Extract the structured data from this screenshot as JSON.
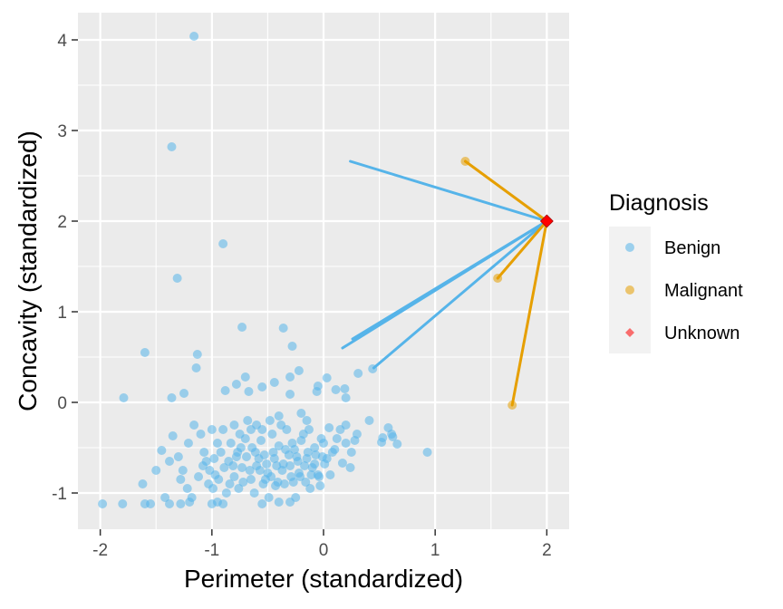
{
  "chart_data": {
    "type": "scatter",
    "xlabel": "Perimeter (standardized)",
    "ylabel": "Concavity (standardized)",
    "xlim": [
      -2.2,
      2.2
    ],
    "ylim": [
      -1.4,
      4.3
    ],
    "x_ticks": [
      -2,
      -1,
      0,
      1,
      2
    ],
    "y_ticks": [
      -1,
      0,
      1,
      2,
      3,
      4
    ],
    "x_tick_labels": [
      "-2",
      "-1",
      "0",
      "1",
      "2"
    ],
    "y_tick_labels": [
      "-1",
      "0",
      "1",
      "2",
      "3",
      "4"
    ],
    "grid": true,
    "legend": {
      "title": "Diagnosis",
      "position": "right",
      "entries": [
        {
          "label": "Benign",
          "color": "#56B4E9",
          "shape": "circle"
        },
        {
          "label": "Malignant",
          "color": "#E69F00",
          "shape": "circle"
        },
        {
          "label": "Unknown",
          "color": "#FF0000",
          "shape": "diamond"
        }
      ]
    },
    "series": [
      {
        "name": "Benign",
        "color": "#56B4E9",
        "points": [
          [
            -1.16,
            4.04
          ],
          [
            -1.36,
            2.82
          ],
          [
            -0.9,
            1.75
          ],
          [
            -1.31,
            1.37
          ],
          [
            -1.6,
            0.55
          ],
          [
            -0.73,
            0.83
          ],
          [
            -0.36,
            0.82
          ],
          [
            -1.13,
            0.53
          ],
          [
            -0.28,
            0.62
          ],
          [
            -1.14,
            0.38
          ],
          [
            -1.79,
            0.05
          ],
          [
            -1.36,
            0.05
          ],
          [
            -1.25,
            0.1
          ],
          [
            -0.7,
            0.28
          ],
          [
            -0.55,
            0.17
          ],
          [
            -0.3,
            0.28
          ],
          [
            -0.22,
            0.35
          ],
          [
            -0.06,
            0.12
          ],
          [
            0.03,
            0.27
          ],
          [
            0.19,
            0.15
          ],
          [
            0.31,
            0.32
          ],
          [
            0.44,
            0.37
          ],
          [
            0.2,
            0.05
          ],
          [
            -0.05,
            0.18
          ],
          [
            -0.88,
            0.13
          ],
          [
            -0.78,
            0.2
          ],
          [
            -0.44,
            0.22
          ],
          [
            -0.3,
            0.09
          ],
          [
            0.11,
            0.14
          ],
          [
            -0.67,
            0.12
          ],
          [
            0.93,
            -0.55
          ],
          [
            0.61,
            -0.35
          ],
          [
            0.66,
            -0.46
          ],
          [
            0.53,
            -0.39
          ],
          [
            0.41,
            -0.2
          ],
          [
            0.3,
            -0.35
          ],
          [
            0.2,
            -0.25
          ],
          [
            0.1,
            -0.52
          ],
          [
            0.17,
            -0.67
          ],
          [
            0.24,
            -0.72
          ],
          [
            0.58,
            -0.28
          ],
          [
            0.62,
            -0.38
          ],
          [
            0.52,
            -0.44
          ],
          [
            -1.98,
            -1.12
          ],
          [
            -1.8,
            -1.12
          ],
          [
            -1.55,
            -1.12
          ],
          [
            -1.38,
            -1.12
          ],
          [
            -1.28,
            -1.12
          ],
          [
            -1.62,
            -0.9
          ],
          [
            -1.5,
            -0.75
          ],
          [
            -1.45,
            -0.53
          ],
          [
            -1.35,
            -0.37
          ],
          [
            -1.38,
            -0.65
          ],
          [
            -1.28,
            -0.85
          ],
          [
            -1.21,
            -0.45
          ],
          [
            -1.16,
            -0.25
          ],
          [
            -1.07,
            -0.55
          ],
          [
            -1.02,
            -0.75
          ],
          [
            -0.99,
            -0.95
          ],
          [
            -0.95,
            -1.1
          ],
          [
            -0.9,
            -0.3
          ],
          [
            -0.85,
            -0.65
          ],
          [
            -0.8,
            -0.82
          ],
          [
            -0.76,
            -0.95
          ],
          [
            -0.74,
            -0.5
          ],
          [
            -0.7,
            -0.4
          ],
          [
            -0.66,
            -0.75
          ],
          [
            -0.62,
            -1.0
          ],
          [
            -0.58,
            -0.62
          ],
          [
            -0.55,
            -0.3
          ],
          [
            -0.52,
            -0.85
          ],
          [
            -0.49,
            -1.05
          ],
          [
            -0.45,
            -0.55
          ],
          [
            -0.42,
            -0.7
          ],
          [
            -0.38,
            -0.25
          ],
          [
            -0.35,
            -0.9
          ],
          [
            -0.31,
            -0.58
          ],
          [
            -0.28,
            -0.45
          ],
          [
            -0.25,
            -1.05
          ],
          [
            -0.22,
            -0.78
          ],
          [
            -0.18,
            -0.35
          ],
          [
            -0.15,
            -0.62
          ],
          [
            -0.12,
            -0.95
          ],
          [
            -0.08,
            -0.5
          ],
          [
            -0.05,
            -0.8
          ],
          [
            -0.02,
            -0.4
          ],
          [
            0.01,
            -0.68
          ],
          [
            0.05,
            -0.28
          ],
          [
            0.08,
            -0.55
          ],
          [
            0.12,
            -0.4
          ],
          [
            -1.1,
            -0.35
          ],
          [
            -1.05,
            -0.65
          ],
          [
            -0.97,
            -0.8
          ],
          [
            -0.92,
            -0.55
          ],
          [
            -0.87,
            -1.0
          ],
          [
            -0.83,
            -0.45
          ],
          [
            -0.78,
            -0.6
          ],
          [
            -0.72,
            -0.88
          ],
          [
            -0.68,
            -0.2
          ],
          [
            -0.64,
            -0.5
          ],
          [
            -0.6,
            -0.7
          ],
          [
            -0.56,
            -0.42
          ],
          [
            -0.53,
            -0.58
          ],
          [
            -0.5,
            -0.78
          ],
          [
            -0.46,
            -0.35
          ],
          [
            -0.43,
            -0.92
          ],
          [
            -0.4,
            -0.48
          ],
          [
            -0.36,
            -0.68
          ],
          [
            -0.33,
            -0.3
          ],
          [
            -0.29,
            -0.82
          ],
          [
            -0.26,
            -0.52
          ],
          [
            -0.23,
            -0.65
          ],
          [
            -0.2,
            -0.42
          ],
          [
            -0.16,
            -0.88
          ],
          [
            -0.13,
            -0.3
          ],
          [
            -0.1,
            -0.72
          ],
          [
            -0.07,
            -0.58
          ],
          [
            -0.03,
            -0.92
          ],
          [
            0.0,
            -0.45
          ],
          [
            0.03,
            -0.62
          ],
          [
            -1.3,
            -0.6
          ],
          [
            -1.26,
            -0.75
          ],
          [
            -1.22,
            -0.95
          ],
          [
            -1.18,
            -1.05
          ],
          [
            -1.12,
            -0.82
          ],
          [
            -1.08,
            -0.7
          ],
          [
            -1.03,
            -0.9
          ],
          [
            -0.98,
            -0.62
          ],
          [
            -0.94,
            -0.85
          ],
          [
            -0.89,
            -0.72
          ],
          [
            -0.84,
            -0.9
          ],
          [
            -0.81,
            -0.7
          ],
          [
            -0.77,
            -0.55
          ],
          [
            -0.73,
            -0.72
          ],
          [
            -0.69,
            -0.6
          ],
          [
            -0.65,
            -0.85
          ],
          [
            -0.61,
            -0.55
          ],
          [
            -0.57,
            -0.75
          ],
          [
            -0.54,
            -0.9
          ],
          [
            -0.51,
            -0.68
          ],
          [
            -0.47,
            -0.82
          ],
          [
            -0.44,
            -0.62
          ],
          [
            -0.41,
            -0.88
          ],
          [
            -0.37,
            -0.75
          ],
          [
            -0.34,
            -0.52
          ],
          [
            -0.3,
            -0.7
          ],
          [
            -0.27,
            -0.88
          ],
          [
            -0.24,
            -0.6
          ],
          [
            -0.21,
            -0.82
          ],
          [
            -0.17,
            -0.7
          ],
          [
            -0.14,
            -0.55
          ],
          [
            -0.11,
            -0.8
          ],
          [
            -0.08,
            -0.68
          ],
          [
            -0.04,
            -0.82
          ],
          [
            -0.01,
            -0.6
          ],
          [
            -0.75,
            -0.35
          ],
          [
            -0.6,
            -0.25
          ],
          [
            -0.48,
            -0.2
          ],
          [
            -0.4,
            -0.15
          ],
          [
            -0.2,
            -0.12
          ],
          [
            -0.15,
            -0.2
          ],
          [
            -0.8,
            -0.25
          ],
          [
            -0.95,
            -0.45
          ],
          [
            -1.0,
            -0.3
          ],
          [
            -0.65,
            -0.3
          ],
          [
            0.15,
            -0.3
          ],
          [
            0.2,
            -0.45
          ],
          [
            0.25,
            -0.55
          ],
          [
            0.28,
            -0.42
          ],
          [
            0.06,
            -0.8
          ],
          [
            -1.6,
            -1.12
          ],
          [
            -1.42,
            -1.05
          ],
          [
            -1.2,
            -1.1
          ],
          [
            -1.0,
            -1.12
          ],
          [
            -0.9,
            -1.12
          ],
          [
            -0.55,
            -1.12
          ],
          [
            -0.4,
            -1.1
          ],
          [
            -0.3,
            -1.1
          ]
        ]
      },
      {
        "name": "Malignant",
        "color": "#E69F00",
        "points": [
          [
            1.27,
            2.66
          ],
          [
            1.56,
            1.37
          ],
          [
            1.69,
            -0.03
          ]
        ]
      },
      {
        "name": "Unknown",
        "color": "#FF0000",
        "points": [
          [
            2.0,
            2.0
          ]
        ]
      }
    ],
    "neighbor_lines": [
      {
        "from": [
          2.0,
          2.0
        ],
        "to": [
          0.24,
          2.66
        ],
        "color": "#56B4E9"
      },
      {
        "from": [
          2.0,
          2.0
        ],
        "to": [
          0.17,
          0.6
        ],
        "color": "#56B4E9"
      },
      {
        "from": [
          2.0,
          2.0
        ],
        "to": [
          0.26,
          0.7
        ],
        "color": "#56B4E9"
      },
      {
        "from": [
          2.0,
          2.0
        ],
        "to": [
          0.45,
          0.38
        ],
        "color": "#56B4E9"
      },
      {
        "from": [
          2.0,
          2.0
        ],
        "to": [
          1.27,
          2.66
        ],
        "color": "#E69F00"
      },
      {
        "from": [
          2.0,
          2.0
        ],
        "to": [
          1.56,
          1.37
        ],
        "color": "#E69F00"
      },
      {
        "from": [
          2.0,
          2.0
        ],
        "to": [
          1.69,
          -0.03
        ],
        "color": "#E69F00"
      }
    ],
    "panel_background": "#EBEBEB",
    "grid_color": "#FFFFFF"
  }
}
